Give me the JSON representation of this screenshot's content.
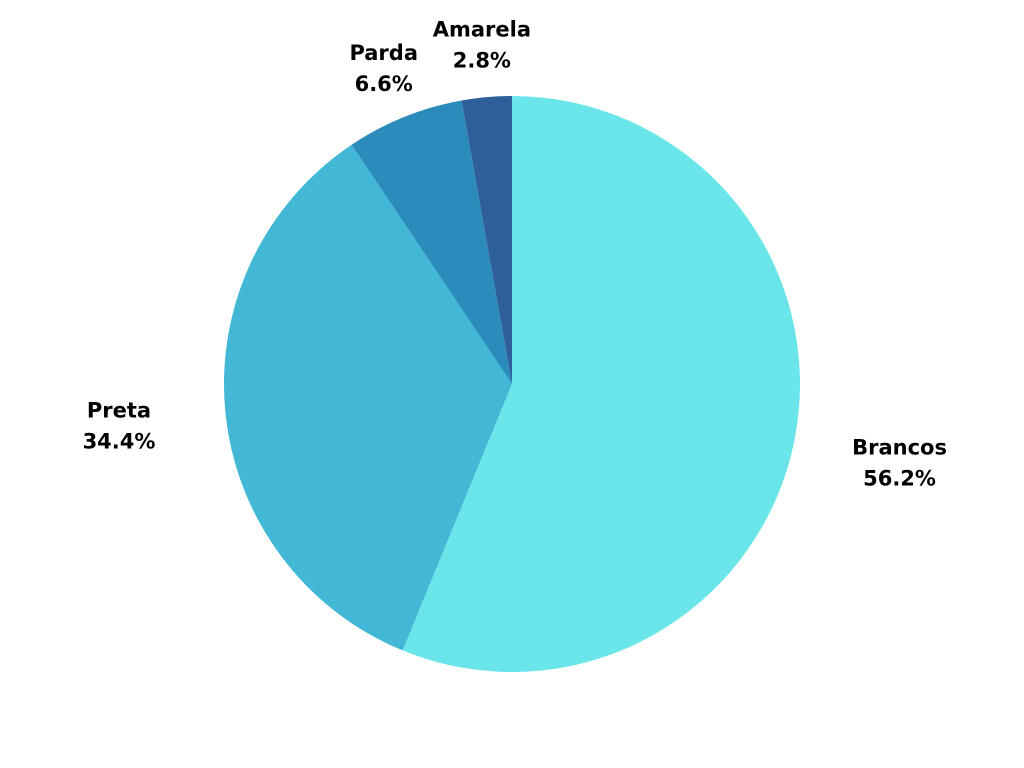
{
  "chart_data": {
    "type": "pie",
    "title": "",
    "start_angle_deg": 0,
    "direction": "clockwise",
    "slices": [
      {
        "label": "Brancos",
        "value": 56.2,
        "value_label": "56.2%",
        "color": "#6ae5ea"
      },
      {
        "label": "Preta",
        "value": 34.4,
        "value_label": "34.4%",
        "color": "#42b7d6"
      },
      {
        "label": "Parda",
        "value": 6.6,
        "value_label": "6.6%",
        "color": "#2b8bbb"
      },
      {
        "label": "Amarela",
        "value": 2.8,
        "value_label": "2.8%",
        "color": "#2e5f98"
      }
    ],
    "legend": "none",
    "labels": "outside"
  }
}
